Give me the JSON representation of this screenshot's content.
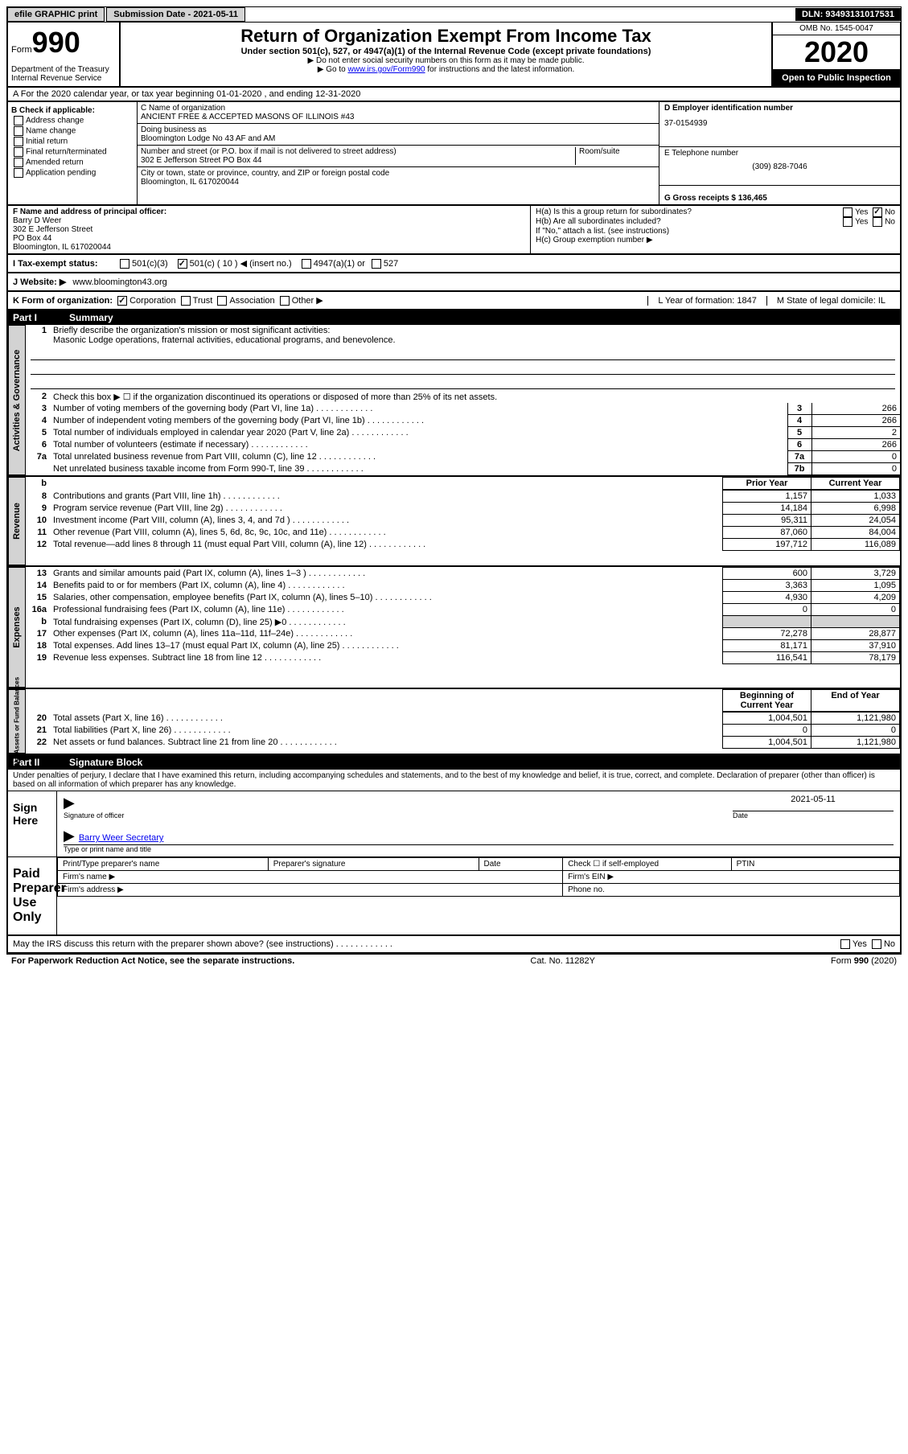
{
  "top_bar": {
    "efile": "efile GRAPHIC print",
    "submission_label": "Submission Date - 2021-05-11",
    "dln": "DLN: 93493131017531"
  },
  "header": {
    "form_label": "Form",
    "form_number": "990",
    "dept": "Department of the Treasury Internal Revenue Service",
    "title": "Return of Organization Exempt From Income Tax",
    "subtitle": "Under section 501(c), 527, or 4947(a)(1) of the Internal Revenue Code (except private foundations)",
    "note1": "▶ Do not enter social security numbers on this form as it may be made public.",
    "note2_prefix": "▶ Go to ",
    "note2_link": "www.irs.gov/Form990",
    "note2_suffix": " for instructions and the latest information.",
    "omb": "OMB No. 1545-0047",
    "year": "2020",
    "public": "Open to Public Inspection"
  },
  "row_a": "A For the 2020 calendar year, or tax year beginning 01-01-2020    , and ending 12-31-2020",
  "box_b": {
    "label": "B Check if applicable:",
    "items": [
      "Address change",
      "Name change",
      "Initial return",
      "Final return/terminated",
      "Amended return",
      "Application pending"
    ]
  },
  "box_c": {
    "name_label": "C Name of organization",
    "name": "ANCIENT FREE & ACCEPTED MASONS OF ILLINOIS #43",
    "dba_label": "Doing business as",
    "dba": "Bloomington Lodge No 43 AF and AM",
    "addr_label": "Number and street (or P.O. box if mail is not delivered to street address)",
    "addr": "302 E Jefferson Street PO Box 44",
    "room_label": "Room/suite",
    "city_label": "City or town, state or province, country, and ZIP or foreign postal code",
    "city": "Bloomington, IL  617020044"
  },
  "box_d": {
    "ein_label": "D Employer identification number",
    "ein": "37-0154939",
    "phone_label": "E Telephone number",
    "phone": "(309) 828-7046",
    "gross_label": "G Gross receipts $ 136,465"
  },
  "box_f": {
    "label": "F  Name and address of principal officer:",
    "name": "Barry D Weer",
    "addr1": "302 E Jefferson Street",
    "addr2": "PO Box 44",
    "addr3": "Bloomington, IL  617020044"
  },
  "box_h": {
    "ha_label": "H(a)  Is this a group return for subordinates?",
    "hb_label": "H(b)  Are all subordinates included?",
    "h_note": "If \"No,\" attach a list. (see instructions)",
    "hc_label": "H(c)  Group exemption number ▶"
  },
  "tax_exempt": {
    "label": "I   Tax-exempt status:",
    "opt1": "501(c)(3)",
    "opt2": "501(c) ( 10 ) ◀ (insert no.)",
    "opt3": "4947(a)(1) or",
    "opt4": "527"
  },
  "website": {
    "label": "J   Website: ▶",
    "value": "www.bloomington43.org"
  },
  "form_org": {
    "label": "K Form of organization:",
    "types": [
      "Corporation",
      "Trust",
      "Association",
      "Other ▶"
    ],
    "year_label": "L Year of formation: 1847",
    "state_label": "M State of legal domicile: IL"
  },
  "part1": {
    "header_part": "Part I",
    "header_title": "Summary",
    "line1_label": "Briefly describe the organization's mission or most significant activities:",
    "line1_text": "Masonic Lodge operations, fraternal activities, educational programs, and benevolence.",
    "line2_label": "Check this box ▶ ☐  if the organization discontinued its operations or disposed of more than 25% of its net assets."
  },
  "gov_rows": [
    {
      "n": "3",
      "desc": "Number of voting members of the governing body (Part VI, line 1a)",
      "box": "3",
      "val": "266"
    },
    {
      "n": "4",
      "desc": "Number of independent voting members of the governing body (Part VI, line 1b)",
      "box": "4",
      "val": "266"
    },
    {
      "n": "5",
      "desc": "Total number of individuals employed in calendar year 2020 (Part V, line 2a)",
      "box": "5",
      "val": "2"
    },
    {
      "n": "6",
      "desc": "Total number of volunteers (estimate if necessary)",
      "box": "6",
      "val": "266"
    },
    {
      "n": "7a",
      "desc": "Total unrelated business revenue from Part VIII, column (C), line 12",
      "box": "7a",
      "val": "0"
    },
    {
      "n": "",
      "desc": "Net unrelated business taxable income from Form 990-T, line 39",
      "box": "7b",
      "val": "0"
    }
  ],
  "rev_header": {
    "prior": "Prior Year",
    "current": "Current Year"
  },
  "rev_rows": [
    {
      "n": "8",
      "desc": "Contributions and grants (Part VIII, line 1h)",
      "prior": "1,157",
      "curr": "1,033"
    },
    {
      "n": "9",
      "desc": "Program service revenue (Part VIII, line 2g)",
      "prior": "14,184",
      "curr": "6,998"
    },
    {
      "n": "10",
      "desc": "Investment income (Part VIII, column (A), lines 3, 4, and 7d )",
      "prior": "95,311",
      "curr": "24,054"
    },
    {
      "n": "11",
      "desc": "Other revenue (Part VIII, column (A), lines 5, 6d, 8c, 9c, 10c, and 11e)",
      "prior": "87,060",
      "curr": "84,004"
    },
    {
      "n": "12",
      "desc": "Total revenue—add lines 8 through 11 (must equal Part VIII, column (A), line 12)",
      "prior": "197,712",
      "curr": "116,089"
    }
  ],
  "exp_rows": [
    {
      "n": "13",
      "desc": "Grants and similar amounts paid (Part IX, column (A), lines 1–3 )",
      "prior": "600",
      "curr": "3,729"
    },
    {
      "n": "14",
      "desc": "Benefits paid to or for members (Part IX, column (A), line 4)",
      "prior": "3,363",
      "curr": "1,095"
    },
    {
      "n": "15",
      "desc": "Salaries, other compensation, employee benefits (Part IX, column (A), lines 5–10)",
      "prior": "4,930",
      "curr": "4,209"
    },
    {
      "n": "16a",
      "desc": "Professional fundraising fees (Part IX, column (A), line 11e)",
      "prior": "0",
      "curr": "0"
    },
    {
      "n": "b",
      "desc": "Total fundraising expenses (Part IX, column (D), line 25) ▶0",
      "prior": "",
      "curr": "",
      "shaded": true
    },
    {
      "n": "17",
      "desc": "Other expenses (Part IX, column (A), lines 11a–11d, 11f–24e)",
      "prior": "72,278",
      "curr": "28,877"
    },
    {
      "n": "18",
      "desc": "Total expenses. Add lines 13–17 (must equal Part IX, column (A), line 25)",
      "prior": "81,171",
      "curr": "37,910"
    },
    {
      "n": "19",
      "desc": "Revenue less expenses. Subtract line 18 from line 12",
      "prior": "116,541",
      "curr": "78,179"
    }
  ],
  "net_header": {
    "begin": "Beginning of Current Year",
    "end": "End of Year"
  },
  "net_rows": [
    {
      "n": "20",
      "desc": "Total assets (Part X, line 16)",
      "prior": "1,004,501",
      "curr": "1,121,980"
    },
    {
      "n": "21",
      "desc": "Total liabilities (Part X, line 26)",
      "prior": "0",
      "curr": "0"
    },
    {
      "n": "22",
      "desc": "Net assets or fund balances. Subtract line 21 from line 20",
      "prior": "1,004,501",
      "curr": "1,121,980"
    }
  ],
  "side_labels": {
    "gov": "Activities & Governance",
    "rev": "Revenue",
    "exp": "Expenses",
    "net": "Net Assets or Fund Balances"
  },
  "part2": {
    "header_part": "Part II",
    "header_title": "Signature Block",
    "intro": "Under penalties of perjury, I declare that I have examined this return, including accompanying schedules and statements, and to the best of my knowledge and belief, it is true, correct, and complete. Declaration of preparer (other than officer) is based on all information of which preparer has any knowledge."
  },
  "sign": {
    "here": "Sign Here",
    "sig_label": "Signature of officer",
    "date_label": "Date",
    "date_val": "2021-05-11",
    "name": "Barry Weer Secretary",
    "name_label": "Type or print name and title"
  },
  "paid": {
    "label": "Paid Preparer Use Only",
    "prep_name": "Print/Type preparer's name",
    "prep_sig": "Preparer's signature",
    "prep_date": "Date",
    "check_label": "Check ☐ if self-employed",
    "ptin": "PTIN",
    "firm_name": "Firm's name    ▶",
    "firm_ein": "Firm's EIN ▶",
    "firm_addr": "Firm's address ▶",
    "phone": "Phone no."
  },
  "discuss": "May the IRS discuss this return with the preparer shown above? (see instructions)",
  "footer": {
    "left": "For Paperwork Reduction Act Notice, see the separate instructions.",
    "mid": "Cat. No. 11282Y",
    "right": "Form 990 (2020)"
  },
  "colors": {
    "shaded": "#d3d3d3",
    "black": "#000000",
    "link": "#0000ee"
  }
}
